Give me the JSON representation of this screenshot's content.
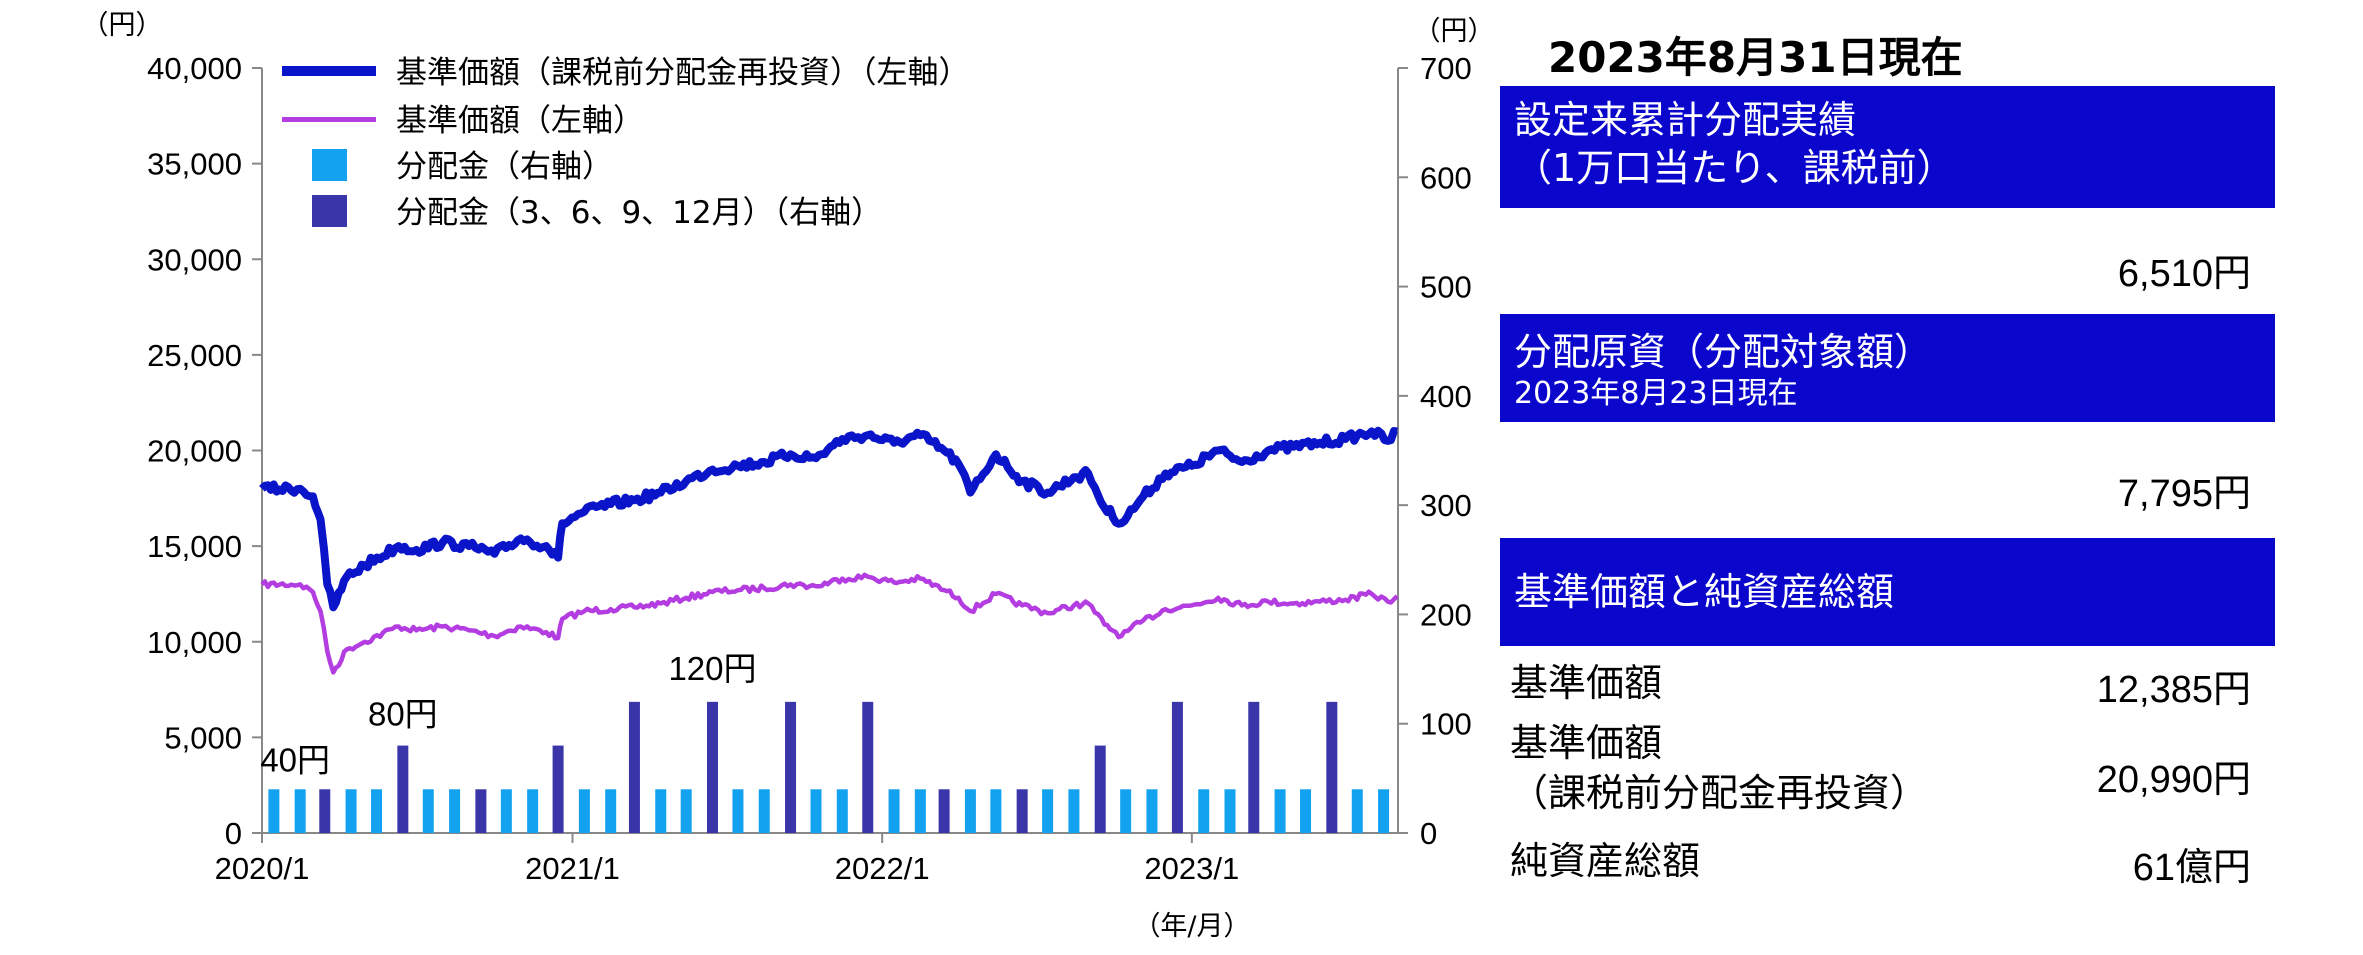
{
  "chart_data": {
    "type": "line",
    "left_unit": "（円）",
    "right_unit": "（円）",
    "x_unit": "（年/月）",
    "x_ticks": [
      "2020/1",
      "2021/1",
      "2022/1",
      "2023/1"
    ],
    "x_range": [
      "2020-01",
      "2023-08"
    ],
    "y_left": {
      "ticks": [
        "0",
        "5,000",
        "10,000",
        "15,000",
        "20,000",
        "25,000",
        "30,000",
        "35,000",
        "40,000"
      ],
      "range": [
        0,
        40000
      ]
    },
    "y_right": {
      "ticks": [
        "0",
        "100",
        "200",
        "300",
        "400",
        "500",
        "600",
        "700"
      ],
      "range": [
        0,
        700
      ]
    },
    "legend": [
      {
        "label": "基準価額（課税前分配金再投資）（左軸）",
        "color": "#0a14c8",
        "kind": "thick-line"
      },
      {
        "label": "基準価額（左軸）",
        "color": "#b33de0",
        "kind": "line"
      },
      {
        "label": "分配金（右軸）",
        "color": "#13a2f0",
        "kind": "box"
      },
      {
        "label": "分配金（3、6、9、12月）（右軸）",
        "color": "#3a35a8",
        "kind": "box"
      }
    ],
    "series": [
      {
        "name": "基準価額（課税前分配金再投資）（左軸）",
        "color": "#0a14c8",
        "points": [
          [
            "2020-01-01",
            18000
          ],
          [
            "2020-02-15",
            18000
          ],
          [
            "2020-03-01",
            17600
          ],
          [
            "2020-03-10",
            16400
          ],
          [
            "2020-03-18",
            13000
          ],
          [
            "2020-03-25",
            11800
          ],
          [
            "2020-04-10",
            13400
          ],
          [
            "2020-05-01",
            14000
          ],
          [
            "2020-06-10",
            15000
          ],
          [
            "2020-07-01",
            14800
          ],
          [
            "2020-08-01",
            15200
          ],
          [
            "2020-09-01",
            15000
          ],
          [
            "2020-10-01",
            14600
          ],
          [
            "2020-11-01",
            15400
          ],
          [
            "2020-12-01",
            15000
          ],
          [
            "2020-12-15",
            14400
          ],
          [
            "2020-12-20",
            16200
          ],
          [
            "2021-01-15",
            16800
          ],
          [
            "2021-02-15",
            17200
          ],
          [
            "2021-03-15",
            17400
          ],
          [
            "2021-04-15",
            17800
          ],
          [
            "2021-05-15",
            18400
          ],
          [
            "2021-06-15",
            19000
          ],
          [
            "2021-07-15",
            19200
          ],
          [
            "2021-08-15",
            19400
          ],
          [
            "2021-09-15",
            19800
          ],
          [
            "2021-10-15",
            19600
          ],
          [
            "2021-11-15",
            20600
          ],
          [
            "2021-12-15",
            20800
          ],
          [
            "2022-01-15",
            20400
          ],
          [
            "2022-02-15",
            20800
          ],
          [
            "2022-03-15",
            20000
          ],
          [
            "2022-04-01",
            19300
          ],
          [
            "2022-04-15",
            17800
          ],
          [
            "2022-05-15",
            19800
          ],
          [
            "2022-06-15",
            18400
          ],
          [
            "2022-07-15",
            17800
          ],
          [
            "2022-08-15",
            18600
          ],
          [
            "2022-09-01",
            18800
          ],
          [
            "2022-09-20",
            17000
          ],
          [
            "2022-10-10",
            16200
          ],
          [
            "2022-11-01",
            17400
          ],
          [
            "2022-12-01",
            18800
          ],
          [
            "2023-01-01",
            19200
          ],
          [
            "2023-02-01",
            20000
          ],
          [
            "2023-03-01",
            19400
          ],
          [
            "2023-04-01",
            20000
          ],
          [
            "2023-05-01",
            20200
          ],
          [
            "2023-06-01",
            20400
          ],
          [
            "2023-07-01",
            20600
          ],
          [
            "2023-08-01",
            21000
          ],
          [
            "2023-08-20",
            20500
          ],
          [
            "2023-08-31",
            20990
          ]
        ]
      },
      {
        "name": "基準価額（左軸）",
        "color": "#b33de0",
        "points": [
          [
            "2020-01-01",
            13000
          ],
          [
            "2020-02-15",
            13000
          ],
          [
            "2020-03-01",
            12600
          ],
          [
            "2020-03-10",
            11600
          ],
          [
            "2020-03-18",
            9500
          ],
          [
            "2020-03-25",
            8400
          ],
          [
            "2020-04-10",
            9600
          ],
          [
            "2020-05-01",
            10000
          ],
          [
            "2020-06-10",
            10800
          ],
          [
            "2020-07-01",
            10600
          ],
          [
            "2020-08-01",
            10800
          ],
          [
            "2020-09-01",
            10600
          ],
          [
            "2020-10-01",
            10300
          ],
          [
            "2020-11-01",
            10800
          ],
          [
            "2020-12-01",
            10500
          ],
          [
            "2020-12-15",
            10200
          ],
          [
            "2020-12-20",
            11200
          ],
          [
            "2021-01-15",
            11600
          ],
          [
            "2021-02-15",
            11700
          ],
          [
            "2021-03-15",
            11800
          ],
          [
            "2021-04-15",
            12000
          ],
          [
            "2021-05-15",
            12300
          ],
          [
            "2021-06-15",
            12600
          ],
          [
            "2021-07-15",
            12700
          ],
          [
            "2021-08-15",
            12800
          ],
          [
            "2021-09-15",
            13000
          ],
          [
            "2021-10-15",
            12900
          ],
          [
            "2021-11-15",
            13300
          ],
          [
            "2021-12-15",
            13400
          ],
          [
            "2022-01-15",
            13100
          ],
          [
            "2022-02-15",
            13300
          ],
          [
            "2022-03-15",
            12700
          ],
          [
            "2022-04-01",
            12300
          ],
          [
            "2022-04-15",
            11600
          ],
          [
            "2022-05-15",
            12500
          ],
          [
            "2022-06-15",
            11900
          ],
          [
            "2022-07-15",
            11500
          ],
          [
            "2022-08-15",
            11900
          ],
          [
            "2022-09-01",
            12000
          ],
          [
            "2022-09-20",
            10900
          ],
          [
            "2022-10-10",
            10300
          ],
          [
            "2022-11-01",
            11000
          ],
          [
            "2022-12-01",
            11700
          ],
          [
            "2023-01-01",
            11900
          ],
          [
            "2023-02-01",
            12300
          ],
          [
            "2023-03-01",
            11900
          ],
          [
            "2023-04-01",
            12100
          ],
          [
            "2023-05-01",
            12000
          ],
          [
            "2023-06-01",
            12100
          ],
          [
            "2023-07-01",
            12200
          ],
          [
            "2023-08-01",
            12500
          ],
          [
            "2023-08-20",
            12100
          ],
          [
            "2023-08-31",
            12385
          ]
        ]
      }
    ],
    "bars": [
      {
        "date": "2020-01",
        "value": 40,
        "type": "monthly"
      },
      {
        "date": "2020-02",
        "value": 40,
        "type": "monthly"
      },
      {
        "date": "2020-03",
        "value": 40,
        "type": "quarterly"
      },
      {
        "date": "2020-04",
        "value": 40,
        "type": "monthly"
      },
      {
        "date": "2020-05",
        "value": 40,
        "type": "monthly"
      },
      {
        "date": "2020-06",
        "value": 80,
        "type": "quarterly"
      },
      {
        "date": "2020-07",
        "value": 40,
        "type": "monthly"
      },
      {
        "date": "2020-08",
        "value": 40,
        "type": "monthly"
      },
      {
        "date": "2020-09",
        "value": 40,
        "type": "quarterly"
      },
      {
        "date": "2020-10",
        "value": 40,
        "type": "monthly"
      },
      {
        "date": "2020-11",
        "value": 40,
        "type": "monthly"
      },
      {
        "date": "2020-12",
        "value": 80,
        "type": "quarterly"
      },
      {
        "date": "2021-01",
        "value": 40,
        "type": "monthly"
      },
      {
        "date": "2021-02",
        "value": 40,
        "type": "monthly"
      },
      {
        "date": "2021-03",
        "value": 120,
        "type": "quarterly"
      },
      {
        "date": "2021-04",
        "value": 40,
        "type": "monthly"
      },
      {
        "date": "2021-05",
        "value": 40,
        "type": "monthly"
      },
      {
        "date": "2021-06",
        "value": 120,
        "type": "quarterly"
      },
      {
        "date": "2021-07",
        "value": 40,
        "type": "monthly"
      },
      {
        "date": "2021-08",
        "value": 40,
        "type": "monthly"
      },
      {
        "date": "2021-09",
        "value": 120,
        "type": "quarterly"
      },
      {
        "date": "2021-10",
        "value": 40,
        "type": "monthly"
      },
      {
        "date": "2021-11",
        "value": 40,
        "type": "monthly"
      },
      {
        "date": "2021-12",
        "value": 120,
        "type": "quarterly"
      },
      {
        "date": "2022-01",
        "value": 40,
        "type": "monthly"
      },
      {
        "date": "2022-02",
        "value": 40,
        "type": "monthly"
      },
      {
        "date": "2022-03",
        "value": 40,
        "type": "quarterly"
      },
      {
        "date": "2022-04",
        "value": 40,
        "type": "monthly"
      },
      {
        "date": "2022-05",
        "value": 40,
        "type": "monthly"
      },
      {
        "date": "2022-06",
        "value": 40,
        "type": "quarterly"
      },
      {
        "date": "2022-07",
        "value": 40,
        "type": "monthly"
      },
      {
        "date": "2022-08",
        "value": 40,
        "type": "monthly"
      },
      {
        "date": "2022-09",
        "value": 80,
        "type": "quarterly"
      },
      {
        "date": "2022-10",
        "value": 40,
        "type": "monthly"
      },
      {
        "date": "2022-11",
        "value": 40,
        "type": "monthly"
      },
      {
        "date": "2022-12",
        "value": 120,
        "type": "quarterly"
      },
      {
        "date": "2023-01",
        "value": 40,
        "type": "monthly"
      },
      {
        "date": "2023-02",
        "value": 40,
        "type": "monthly"
      },
      {
        "date": "2023-03",
        "value": 120,
        "type": "quarterly"
      },
      {
        "date": "2023-04",
        "value": 40,
        "type": "monthly"
      },
      {
        "date": "2023-05",
        "value": 40,
        "type": "monthly"
      },
      {
        "date": "2023-06",
        "value": 120,
        "type": "quarterly"
      },
      {
        "date": "2023-07",
        "value": 40,
        "type": "monthly"
      },
      {
        "date": "2023-08",
        "value": 40,
        "type": "monthly"
      }
    ],
    "annotations": [
      {
        "text": "40円",
        "date": "2020-02",
        "value": 40
      },
      {
        "text": "80円",
        "date": "2020-06",
        "value": 80
      },
      {
        "text": "120円",
        "date": "2021-06",
        "value": 120
      }
    ]
  },
  "panel": {
    "date_title": "2023年8月31日現在",
    "box1_line1": "設定来累計分配実績",
    "box1_line2": "（1万口当たり、課税前）",
    "box1_value": "6,510円",
    "box2_line1": "分配原資（分配対象額）",
    "box2_line2": "2023年8月23日現在",
    "box2_value": "7,795円",
    "box3_title": "基準価額と純資産総額",
    "nav_label": "基準価額",
    "nav_value": "12,385円",
    "nav_reinv_label1": "基準価額",
    "nav_reinv_label2": "（課税前分配金再投資）",
    "nav_reinv_value": "20,990円",
    "aum_label": "純資産総額",
    "aum_value": "61億円"
  },
  "colors": {
    "reinvested_line": "#0a14c8",
    "nav_line": "#b33de0",
    "bar_monthly": "#13a2f0",
    "bar_quarterly": "#3a35a8",
    "panel_box": "#0a06cc"
  }
}
